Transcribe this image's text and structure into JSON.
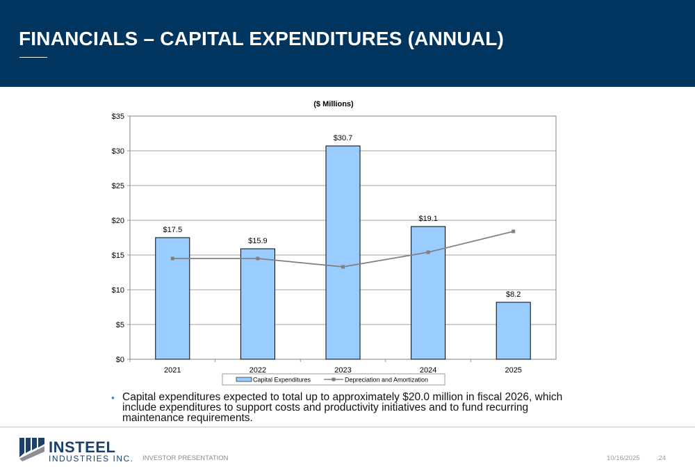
{
  "header": {
    "title": "FINANCIALS – CAPITAL EXPENDITURES (ANNUAL)"
  },
  "chart_data": {
    "type": "bar",
    "title": "($ Millions)",
    "categories": [
      "2021",
      "2022",
      "2023",
      "2024",
      "2025"
    ],
    "series": [
      {
        "name": "Capital Expenditures",
        "type": "bar",
        "values": [
          17.5,
          15.9,
          30.7,
          19.1,
          8.2
        ],
        "labels": [
          "$17.5",
          "$15.9",
          "$30.7",
          "$19.1",
          "$8.2"
        ],
        "color": "#99ccff"
      },
      {
        "name": "Depreciation and Amortization",
        "type": "line",
        "values": [
          14.5,
          14.5,
          13.3,
          15.4,
          18.4
        ],
        "color": "#808080"
      }
    ],
    "ylim": [
      0,
      35
    ],
    "yticks": [
      0,
      5,
      10,
      15,
      20,
      25,
      30,
      35
    ],
    "ytick_labels": [
      "$0",
      "$5",
      "$10",
      "$15",
      "$20",
      "$25",
      "$30",
      "$35"
    ],
    "xlabel": "",
    "ylabel": "",
    "grid": true,
    "legend": "bottom-center"
  },
  "bullets": [
    "Capital expenditures expected to total up to approximately $20.0 million in fiscal 2026, which include expenditures to support costs and productivity initiatives and to fund recurring maintenance requirements."
  ],
  "footer": {
    "company_name": "INSTEEL",
    "company_sub": "INDUSTRIES INC.",
    "label": "INVESTOR PRESENTATION",
    "date": "10/16/2025",
    "page": ".24"
  },
  "colors": {
    "header_bg": "#00355f",
    "bar_fill": "#99ccff",
    "line": "#808080",
    "accent": "#4a86c5"
  }
}
